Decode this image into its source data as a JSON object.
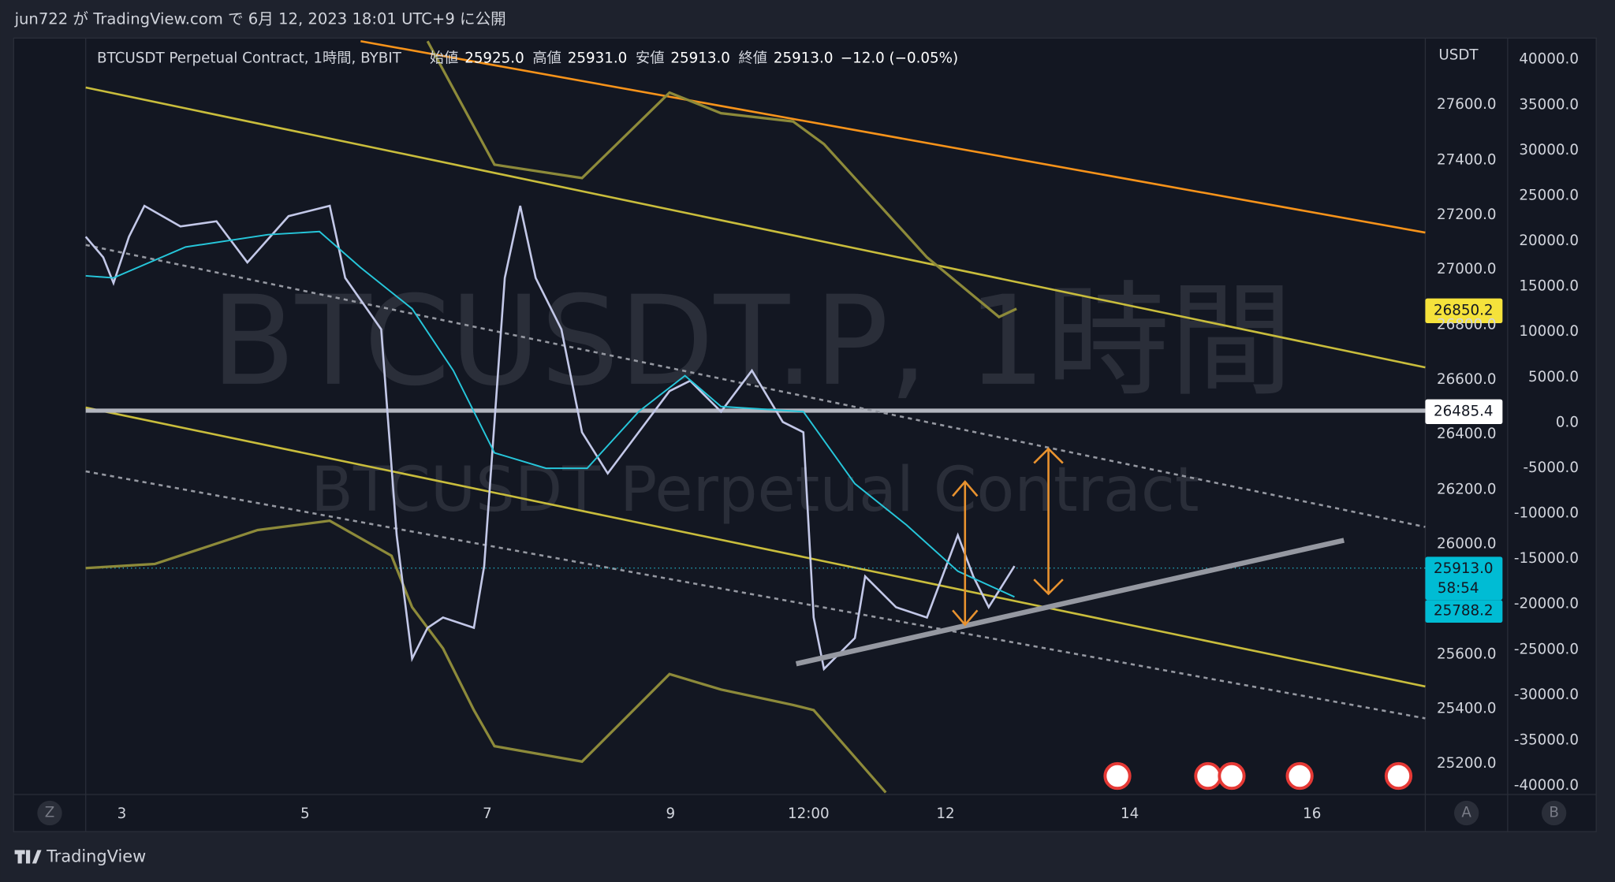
{
  "header": {
    "text": "jun722 が TradingView.com で 6月 12, 2023 18:01 UTC+9 に公開"
  },
  "legend": {
    "symbol": "BTCUSDT Perpetual Contract, 1時間, BYBIT",
    "open_label": "始値",
    "open": "25925.0",
    "high_label": "高値",
    "high": "25931.0",
    "low_label": "安値",
    "low": "25913.0",
    "close_label": "終値",
    "close": "25913.0",
    "change": "−12.0 (−0.05%)"
  },
  "watermark": {
    "title": "BTCUSDT.P, 1時間",
    "subtitle": "BTCUSDT Perpetual Contract"
  },
  "price_axis": {
    "unit": "USDT",
    "labels": [
      "27600.0",
      "27400.0",
      "27200.0",
      "27000.0",
      "26800.0",
      "26600.0",
      "26400.0",
      "26200.0",
      "26000.0",
      "25600.0",
      "25400.0",
      "25200.0"
    ]
  },
  "badges": {
    "upper_level": "26850.2",
    "horizontal_level": "26485.4",
    "last_price": "25913.0",
    "countdown": "58:54",
    "lower_level": "25788.2"
  },
  "volume_axis": {
    "labels": [
      "40000.0",
      "35000.0",
      "30000.0",
      "25000.0",
      "20000.0",
      "15000.0",
      "10000.0",
      "5000.0",
      "0.0",
      "-5000.0",
      "-10000.0",
      "-15000.0",
      "-20000.0",
      "-25000.0",
      "-30000.0",
      "-35000.0",
      "-40000.0"
    ]
  },
  "time_axis": {
    "labels": [
      "3",
      "5",
      "7",
      "9",
      "12:00",
      "12",
      "14",
      "16"
    ]
  },
  "buttons": [
    "Z",
    "A",
    "B"
  ],
  "footer": {
    "brand": "TradingView"
  }
}
